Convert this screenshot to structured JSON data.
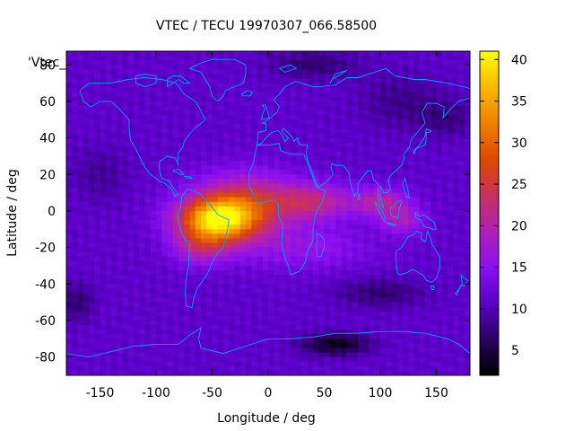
{
  "chart_data": {
    "type": "heatmap",
    "title": "VTEC / TECU 19970307_066.58500",
    "xlabel": "Longitude / deg",
    "ylabel": "Latitude / deg",
    "key_label": "'Vtec_",
    "xlim": [
      -180,
      180
    ],
    "ylim": [
      -90,
      87.5
    ],
    "x_ticks": [
      -150,
      -100,
      -50,
      0,
      50,
      100,
      150
    ],
    "y_ticks": [
      -80,
      -60,
      -40,
      -20,
      0,
      20,
      40,
      60,
      80
    ],
    "colorbar": {
      "range": [
        2,
        41
      ],
      "ticks": [
        5,
        10,
        15,
        20,
        25,
        30,
        35,
        40
      ],
      "palette": "black-purple-magenta-red-orange-yellow",
      "stops": [
        "#000000",
        "#2a0060",
        "#5a00c8",
        "#8a10f0",
        "#b020b8",
        "#c83060",
        "#e04800",
        "#f08000",
        "#f8b800",
        "#ffff00"
      ]
    },
    "grid": false,
    "cell_size_deg": [
      5,
      2.5
    ],
    "field": {
      "background": 11,
      "blobs": [
        {
          "lon": -45,
          "lat": -5,
          "sx": 35,
          "sy": 12,
          "amp": 26
        },
        {
          "lon": -20,
          "lat": 5,
          "sx": 45,
          "sy": 16,
          "amp": 12
        },
        {
          "lon": 40,
          "lat": 5,
          "sx": 35,
          "sy": 10,
          "amp": 10
        },
        {
          "lon": 100,
          "lat": 5,
          "sx": 25,
          "sy": 8,
          "amp": 9
        },
        {
          "lon": 120,
          "lat": -5,
          "sx": 20,
          "sy": 8,
          "amp": 7
        },
        {
          "lon": -60,
          "lat": -20,
          "sx": 25,
          "sy": 10,
          "amp": 8
        },
        {
          "lon": 30,
          "lat": -20,
          "sx": 60,
          "sy": 12,
          "amp": 5
        },
        {
          "lon": 60,
          "lat": -73,
          "sx": 30,
          "sy": 6,
          "amp": -8
        },
        {
          "lon": 100,
          "lat": -45,
          "sx": 40,
          "sy": 8,
          "amp": -4
        },
        {
          "lon": -170,
          "lat": -50,
          "sx": 15,
          "sy": 10,
          "amp": -4
        },
        {
          "lon": -150,
          "lat": 20,
          "sx": 25,
          "sy": 15,
          "amp": -2.5
        },
        {
          "lon": 40,
          "lat": 80,
          "sx": 40,
          "sy": 8,
          "amp": -4
        },
        {
          "lon": 120,
          "lat": 60,
          "sx": 40,
          "sy": 15,
          "amp": -3
        },
        {
          "lon": 160,
          "lat": 50,
          "sx": 25,
          "sy": 10,
          "amp": -3
        }
      ]
    },
    "coastline_color": "#00a0ff"
  }
}
